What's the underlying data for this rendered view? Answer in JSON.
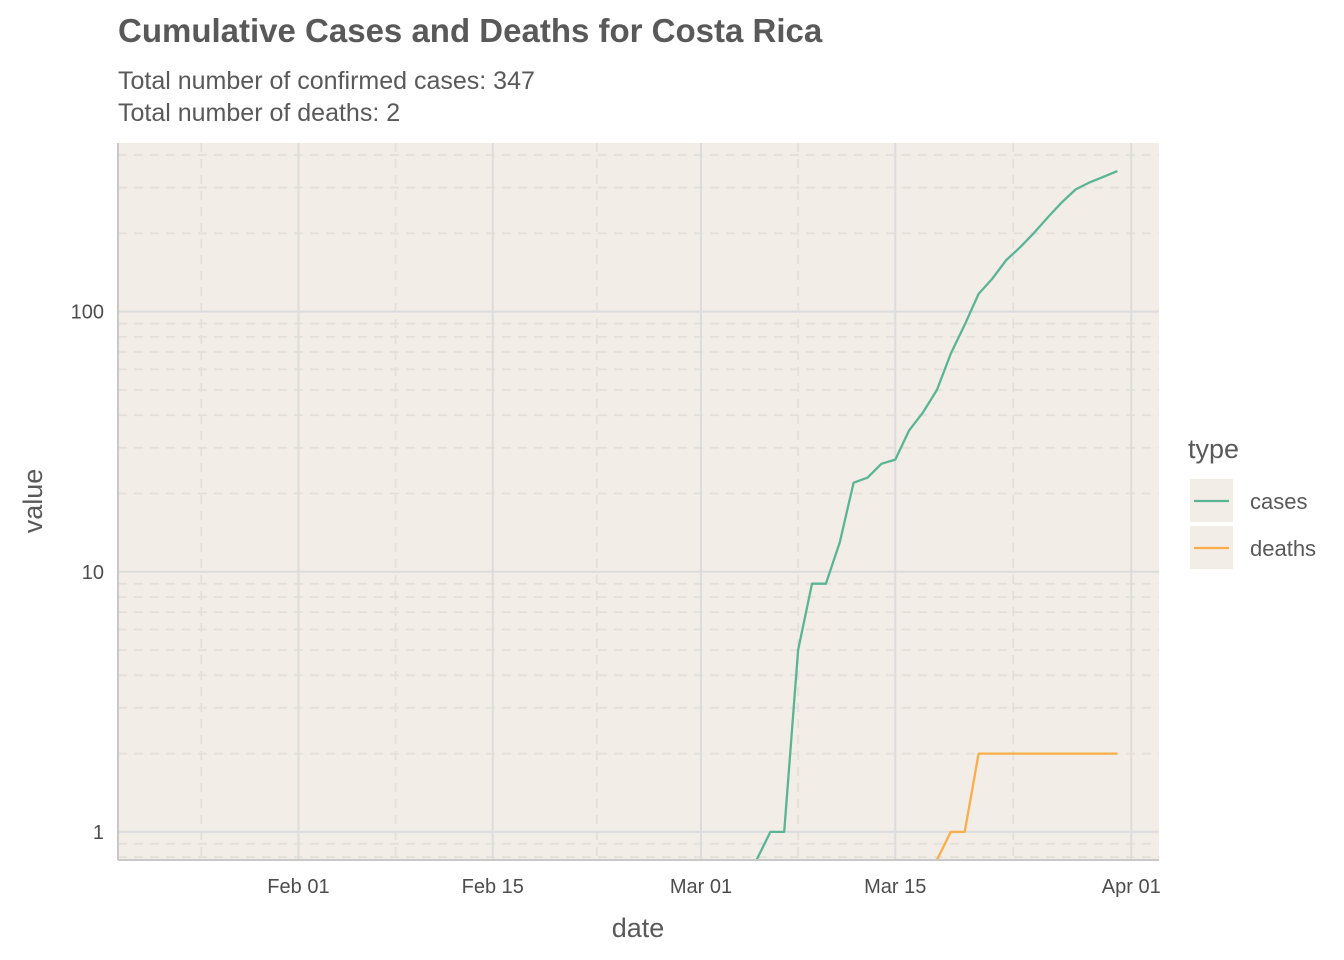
{
  "title": "Cumulative Cases and Deaths for Costa Rica",
  "subtitle_line1": "Total number of confirmed cases: 347",
  "subtitle_line2": "Total number of deaths: 2",
  "colors": {
    "panel_background": "#f3ede7",
    "major_grid": "#dcdcdc",
    "minor_grid": "#e3e0dc",
    "cases": "#5ab595",
    "deaths": "#fbad48",
    "text": "#595959"
  },
  "chart_data": {
    "type": "line",
    "title": "Cumulative Cases and Deaths for Costa Rica",
    "xlabel": "date",
    "ylabel": "value",
    "yscale": "log10",
    "xlim": [
      "2020-01-19",
      "2020-04-03"
    ],
    "ylim": [
      0.78,
      445
    ],
    "grid": true,
    "x_ticks": [
      {
        "date": "2020-02-01",
        "label": "Feb 01"
      },
      {
        "date": "2020-02-15",
        "label": "Feb 15"
      },
      {
        "date": "2020-03-01",
        "label": "Mar 01"
      },
      {
        "date": "2020-03-15",
        "label": "Mar 15"
      },
      {
        "date": "2020-04-01",
        "label": "Apr 01"
      }
    ],
    "y_ticks": [
      {
        "value": 1,
        "label": "1"
      },
      {
        "value": 10,
        "label": "10"
      },
      {
        "value": 100,
        "label": "100"
      }
    ],
    "legend": {
      "title": "type",
      "position": "right"
    },
    "series": [
      {
        "name": "cases",
        "color": "#5ab595",
        "points": [
          [
            "2020-03-05",
            0.78
          ],
          [
            "2020-03-06",
            1
          ],
          [
            "2020-03-07",
            1
          ],
          [
            "2020-03-08",
            5
          ],
          [
            "2020-03-09",
            9
          ],
          [
            "2020-03-10",
            9
          ],
          [
            "2020-03-11",
            13
          ],
          [
            "2020-03-12",
            22
          ],
          [
            "2020-03-13",
            23
          ],
          [
            "2020-03-14",
            26
          ],
          [
            "2020-03-15",
            27
          ],
          [
            "2020-03-16",
            35
          ],
          [
            "2020-03-17",
            41
          ],
          [
            "2020-03-18",
            50
          ],
          [
            "2020-03-19",
            69
          ],
          [
            "2020-03-20",
            89
          ],
          [
            "2020-03-21",
            117
          ],
          [
            "2020-03-22",
            134
          ],
          [
            "2020-03-23",
            158
          ],
          [
            "2020-03-24",
            177
          ],
          [
            "2020-03-25",
            201
          ],
          [
            "2020-03-26",
            231
          ],
          [
            "2020-03-27",
            263
          ],
          [
            "2020-03-28",
            295
          ],
          [
            "2020-03-29",
            314
          ],
          [
            "2020-03-30",
            330
          ],
          [
            "2020-03-31",
            347
          ]
        ]
      },
      {
        "name": "deaths",
        "color": "#fbad48",
        "points": [
          [
            "2020-03-18",
            0.78
          ],
          [
            "2020-03-19",
            1
          ],
          [
            "2020-03-20",
            1
          ],
          [
            "2020-03-21",
            2
          ],
          [
            "2020-03-22",
            2
          ],
          [
            "2020-03-23",
            2
          ],
          [
            "2020-03-24",
            2
          ],
          [
            "2020-03-25",
            2
          ],
          [
            "2020-03-26",
            2
          ],
          [
            "2020-03-27",
            2
          ],
          [
            "2020-03-28",
            2
          ],
          [
            "2020-03-29",
            2
          ],
          [
            "2020-03-30",
            2
          ],
          [
            "2020-03-31",
            2
          ]
        ]
      }
    ]
  }
}
